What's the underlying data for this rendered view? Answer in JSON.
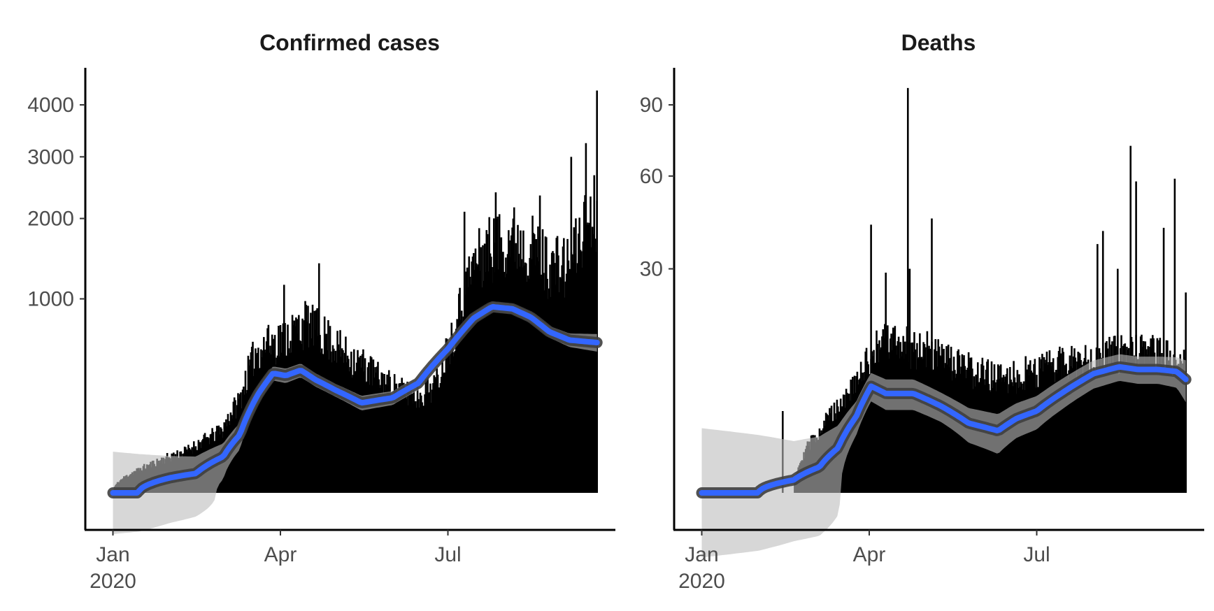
{
  "chart_data": [
    {
      "type": "line",
      "title": "Confirmed cases",
      "xlabel": "",
      "ylabel": "",
      "x_range": [
        "2019-12-17",
        "2020-09-30"
      ],
      "y_scale": "sqrt",
      "ylim": [
        0,
        4800
      ],
      "grid": false,
      "x_ticks": [
        {
          "value": "2020-01-01",
          "label": "Jan",
          "sublabel": "2020"
        },
        {
          "value": "2020-04-01",
          "label": "Apr",
          "sublabel": ""
        },
        {
          "value": "2020-07-01",
          "label": "Jul",
          "sublabel": ""
        }
      ],
      "y_ticks": [
        1000,
        2000,
        3000,
        4000
      ],
      "data_start": "2020-01-01",
      "data_end": "2020-09-20",
      "envelope_dates": [
        "2020-01-01",
        "2020-01-20",
        "2020-02-10",
        "2020-02-29",
        "2020-03-10",
        "2020-03-19",
        "2020-03-28",
        "2020-04-05",
        "2020-04-15",
        "2020-04-25",
        "2020-05-05",
        "2020-05-15",
        "2020-05-25",
        "2020-06-05",
        "2020-06-15",
        "2020-06-25",
        "2020-07-05",
        "2020-07-15",
        "2020-07-25",
        "2020-08-05",
        "2020-08-15",
        "2020-08-25",
        "2020-09-05",
        "2020-09-15",
        "2020-09-20"
      ],
      "envelope_values": [
        0,
        25,
        60,
        130,
        300,
        700,
        780,
        850,
        1000,
        850,
        680,
        580,
        450,
        360,
        320,
        420,
        950,
        1800,
        2100,
        2250,
        2100,
        1800,
        1750,
        2600,
        2800
      ],
      "peaks": [
        {
          "date": "2020-03-25",
          "value": 720
        },
        {
          "date": "2020-04-03",
          "value": 1150
        },
        {
          "date": "2020-04-22",
          "value": 1400
        },
        {
          "date": "2020-07-10",
          "value": 2100
        },
        {
          "date": "2020-07-27",
          "value": 2400
        },
        {
          "date": "2020-08-20",
          "value": 2350
        },
        {
          "date": "2020-09-06",
          "value": 3000
        },
        {
          "date": "2020-09-14",
          "value": 3250
        },
        {
          "date": "2020-09-20",
          "value": 4300
        }
      ],
      "trend": {
        "x": [
          "2020-01-01",
          "2020-01-15",
          "2020-02-01",
          "2020-02-15",
          "2020-03-01",
          "2020-03-10",
          "2020-03-20",
          "2020-03-28",
          "2020-04-04",
          "2020-04-12",
          "2020-04-20",
          "2020-05-01",
          "2020-05-15",
          "2020-06-01",
          "2020-06-15",
          "2020-07-01",
          "2020-07-15",
          "2020-07-25",
          "2020-08-05",
          "2020-08-15",
          "2020-08-25",
          "2020-09-05",
          "2020-09-20"
        ],
        "y": [
          0,
          0,
          6,
          10,
          35,
          90,
          260,
          380,
          365,
          400,
          340,
          280,
          215,
          240,
          320,
          550,
          810,
          920,
          900,
          820,
          690,
          620,
          600
        ],
        "band": [
          45,
          40,
          30,
          25,
          30,
          40,
          45,
          45,
          45,
          45,
          40,
          35,
          35,
          35,
          40,
          45,
          50,
          50,
          50,
          50,
          50,
          55,
          70
        ]
      }
    },
    {
      "type": "line",
      "title": "Deaths",
      "xlabel": "",
      "ylabel": "",
      "x_range": [
        "2019-12-17",
        "2020-09-30"
      ],
      "y_scale": "sqrt",
      "ylim": [
        0,
        108
      ],
      "grid": false,
      "x_ticks": [
        {
          "value": "2020-01-01",
          "label": "Jan",
          "sublabel": "2020"
        },
        {
          "value": "2020-04-01",
          "label": "Apr",
          "sublabel": ""
        },
        {
          "value": "2020-07-01",
          "label": "Jul",
          "sublabel": ""
        }
      ],
      "y_ticks": [
        30,
        60,
        90
      ],
      "data_start": "2020-01-01",
      "data_end": "2020-09-20",
      "envelope_dates": [
        "2020-01-01",
        "2020-02-20",
        "2020-03-05",
        "2020-03-15",
        "2020-03-25",
        "2020-04-01",
        "2020-04-10",
        "2020-04-20",
        "2020-05-01",
        "2020-05-15",
        "2020-06-01",
        "2020-06-15",
        "2020-07-01",
        "2020-07-15",
        "2020-08-01",
        "2020-08-15",
        "2020-09-01",
        "2020-09-20"
      ],
      "envelope_values": [
        0,
        0,
        3,
        6,
        9,
        14,
        18,
        17,
        16,
        13,
        11,
        10,
        12,
        13,
        14,
        15,
        15,
        14
      ],
      "peaks": [
        {
          "date": "2020-02-14",
          "value": 4
        },
        {
          "date": "2020-04-02",
          "value": 43
        },
        {
          "date": "2020-04-10",
          "value": 29
        },
        {
          "date": "2020-04-22",
          "value": 98
        },
        {
          "date": "2020-04-23",
          "value": 30
        },
        {
          "date": "2020-05-05",
          "value": 45
        },
        {
          "date": "2020-08-03",
          "value": 37
        },
        {
          "date": "2020-08-06",
          "value": 41
        },
        {
          "date": "2020-08-14",
          "value": 30
        },
        {
          "date": "2020-08-21",
          "value": 72
        },
        {
          "date": "2020-08-24",
          "value": 58
        },
        {
          "date": "2020-09-08",
          "value": 42
        },
        {
          "date": "2020-09-14",
          "value": 59
        },
        {
          "date": "2020-09-20",
          "value": 24
        }
      ],
      "trend": {
        "x": [
          "2020-01-01",
          "2020-02-01",
          "2020-02-20",
          "2020-03-05",
          "2020-03-15",
          "2020-03-25",
          "2020-04-02",
          "2020-04-10",
          "2020-04-25",
          "2020-05-10",
          "2020-05-25",
          "2020-06-10",
          "2020-06-20",
          "2020-07-01",
          "2020-07-15",
          "2020-08-01",
          "2020-08-15",
          "2020-08-25",
          "2020-09-05",
          "2020-09-15",
          "2020-09-20"
        ],
        "y": [
          0,
          0,
          0.1,
          0.4,
          1.2,
          3.5,
          6.8,
          5.9,
          5.9,
          4.5,
          2.9,
          2.3,
          3.3,
          4.0,
          6.0,
          8.5,
          9.5,
          9.1,
          9.1,
          8.8,
          7.7
        ],
        "band": [
          2.5,
          2.0,
          1.5,
          1.5,
          1.5,
          1.5,
          1.8,
          1.8,
          1.8,
          1.5,
          1.4,
          1.4,
          1.5,
          1.6,
          1.8,
          2.0,
          2.0,
          2.0,
          2.0,
          2.2,
          2.8
        ]
      }
    }
  ]
}
